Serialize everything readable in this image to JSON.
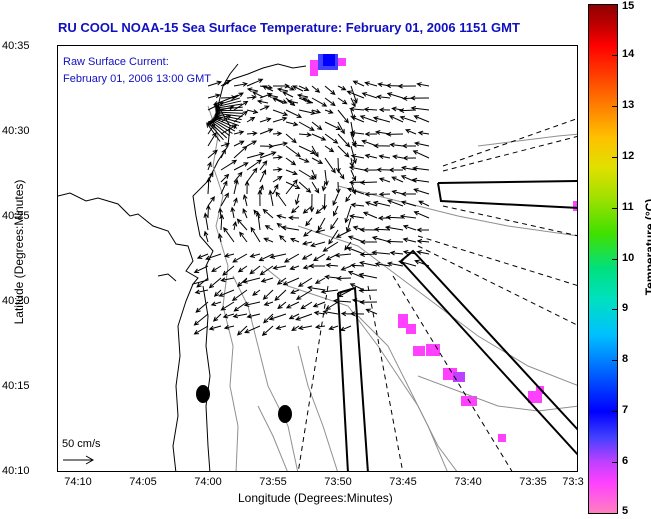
{
  "title": "RU COOL  NOAA-15  Sea Surface Temperature:  February 01, 2006 1151 GMT",
  "legend": {
    "line1": "Raw Surface Current:",
    "line2": "February 01, 2006 13:00 GMT"
  },
  "scale_label": "50 cm/s",
  "x_axis": {
    "label": "Longitude (Degrees:Minutes)",
    "ticks": [
      "74:10",
      "74:05",
      "74:00",
      "73:55",
      "73:50",
      "73:45",
      "73:40",
      "73:35",
      "73:3"
    ]
  },
  "y_axis": {
    "label": "Latitude (Degrees:Minutes)",
    "ticks": [
      "40:35",
      "40:30",
      "40:25",
      "40:20",
      "40:15",
      "40:10"
    ]
  },
  "colorbar": {
    "label": "Temperature (°C)",
    "ticks": [
      "15",
      "14",
      "13",
      "12",
      "11",
      "10",
      "9",
      "8",
      "7",
      "6",
      "5"
    ],
    "range": [
      5,
      15
    ]
  },
  "colors": {
    "title": "#1010c0",
    "arrows": "#000000",
    "sst_low": "#ff40ff",
    "sst_cold": "#0000ff"
  }
}
